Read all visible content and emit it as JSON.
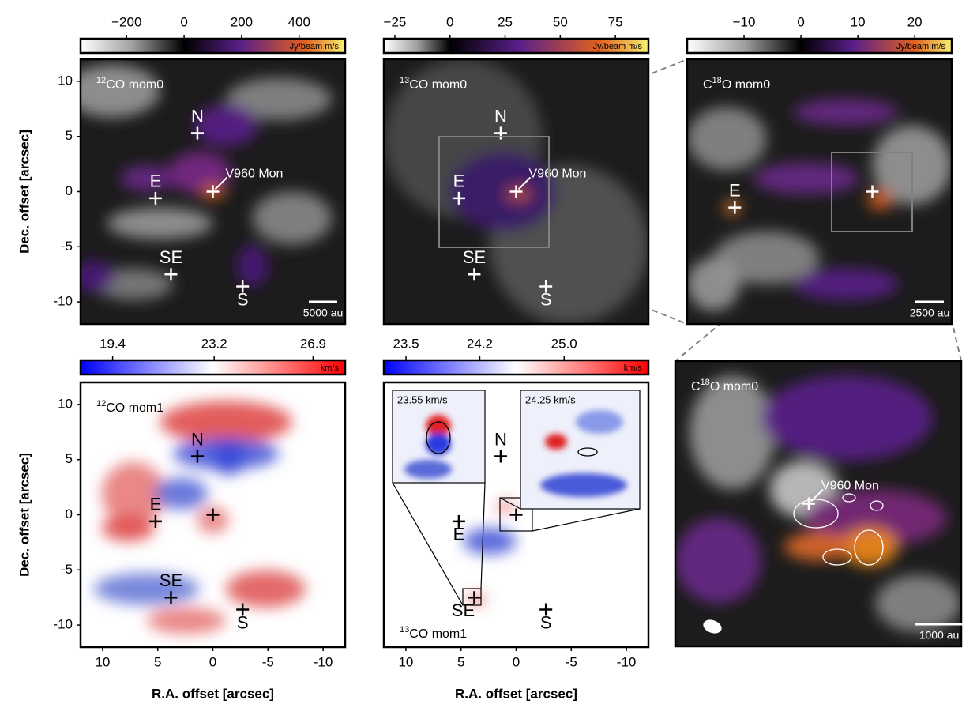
{
  "chart_data": [
    {
      "type": "image",
      "title": {
        "sup": "12",
        "text": "CO mom0"
      },
      "colorbar": {
        "lim": [
          -360,
          560
        ],
        "ticks": [
          {
            "value": -200,
            "label": "−200"
          },
          0,
          200,
          400
        ],
        "unit": "Jy/beam m/s"
      },
      "xlim": [
        12,
        -12
      ],
      "ylim": [
        -12,
        12
      ],
      "yticks": [
        10,
        5,
        0,
        -5,
        -10
      ],
      "ylabel": "Dec. offset [arcsec]",
      "markers": [
        {
          "label": "N",
          "x": 1.4,
          "y": 5.3
        },
        {
          "label": "E",
          "x": 5.2,
          "y": -0.6
        },
        {
          "label": "V960 Mon",
          "x": 0,
          "y": 0
        },
        {
          "label": "SE",
          "x": 3.8,
          "y": -7.5
        },
        {
          "label": "S",
          "x": -2.7,
          "y": -8.6
        }
      ],
      "scalebar": "5000 au"
    },
    {
      "type": "image",
      "title": {
        "sup": "13",
        "text": "CO mom0"
      },
      "colorbar": {
        "lim": [
          -30,
          90
        ],
        "ticks": [
          {
            "value": -25,
            "label": "−25"
          },
          0,
          25,
          50,
          75
        ],
        "unit": "Jy/beam m/s"
      },
      "xlim": [
        12,
        -12
      ],
      "ylim": [
        -12,
        12
      ],
      "markers": [
        {
          "label": "N",
          "x": 1.4,
          "y": 5.3
        },
        {
          "label": "E",
          "x": 5.2,
          "y": -0.6
        },
        {
          "label": "V960 Mon",
          "x": 0,
          "y": 0
        },
        {
          "label": "SE",
          "x": 3.8,
          "y": -7.5
        },
        {
          "label": "S",
          "x": -2.7,
          "y": -8.6
        }
      ]
    },
    {
      "type": "image",
      "title": {
        "sup": "18",
        "pre": "C",
        "text": "O mom0"
      },
      "colorbar": {
        "lim": [
          -20,
          26.5
        ],
        "ticks": [
          {
            "value": -10,
            "label": "−10"
          },
          0,
          10,
          20
        ],
        "unit": "Jy/beam m/s"
      },
      "xlim": [
        7,
        -3
      ],
      "ylim": [
        -5,
        5
      ],
      "markers": [
        {
          "label": "E",
          "x": 5.2,
          "y": -0.6
        },
        {
          "x": 0,
          "y": 0
        }
      ],
      "scalebar": "2500 au"
    },
    {
      "type": "image",
      "title": {
        "sup": "12",
        "text": "CO mom1"
      },
      "colorbar": {
        "lim": [
          18.2,
          28.1
        ],
        "ticks": [
          19.4,
          23.2,
          26.9
        ],
        "unit": "km/s"
      },
      "xlim": [
        12,
        -12
      ],
      "ylim": [
        -12,
        12
      ],
      "xticks": [
        10,
        5,
        0,
        -5,
        -10
      ],
      "yticks": [
        10,
        5,
        0,
        -5,
        -10
      ],
      "xlabel": "R.A. offset [arcsec]",
      "ylabel": "Dec. offset [arcsec]",
      "markers": [
        {
          "label": "N",
          "x": 1.4,
          "y": 5.3
        },
        {
          "label": "E",
          "x": 5.2,
          "y": -0.6
        },
        {
          "x": 0,
          "y": 0
        },
        {
          "label": "SE",
          "x": 3.8,
          "y": -7.5
        },
        {
          "label": "S",
          "x": -2.7,
          "y": -8.6
        }
      ]
    },
    {
      "type": "image",
      "title": {
        "sup": "13",
        "text": "CO mom1"
      },
      "colorbar": {
        "lim": [
          23.29,
          25.8
        ],
        "ticks": [
          23.5,
          24.2,
          {
            "value": 25,
            "label": "25.0"
          }
        ],
        "unit": "km/s"
      },
      "xlim": [
        12,
        -12
      ],
      "ylim": [
        -12,
        12
      ],
      "xticks": [
        10,
        5,
        0,
        -5,
        -10
      ],
      "xlabel": "R.A. offset [arcsec]",
      "markers": [
        {
          "label": "N",
          "x": 1.4,
          "y": 5.3
        },
        {
          "label": "E",
          "x": 5.2,
          "y": -0.6
        },
        {
          "x": 0,
          "y": 0
        },
        {
          "label": "SE",
          "x": 3.8,
          "y": -7.5
        },
        {
          "label": "S",
          "x": -2.7,
          "y": -8.6
        }
      ],
      "insets": [
        "23.55 km/s",
        "24.25 km/s"
      ]
    },
    {
      "type": "image",
      "title": {
        "sup": "18",
        "pre": "C",
        "text": "O mom0"
      },
      "xlim": [
        1.4,
        -1.6
      ],
      "ylim": [
        -1.5,
        1.5
      ],
      "markers": [
        {
          "label": "V960 Mon",
          "x": 0,
          "y": 0
        }
      ],
      "scalebar": "1000 au"
    }
  ]
}
